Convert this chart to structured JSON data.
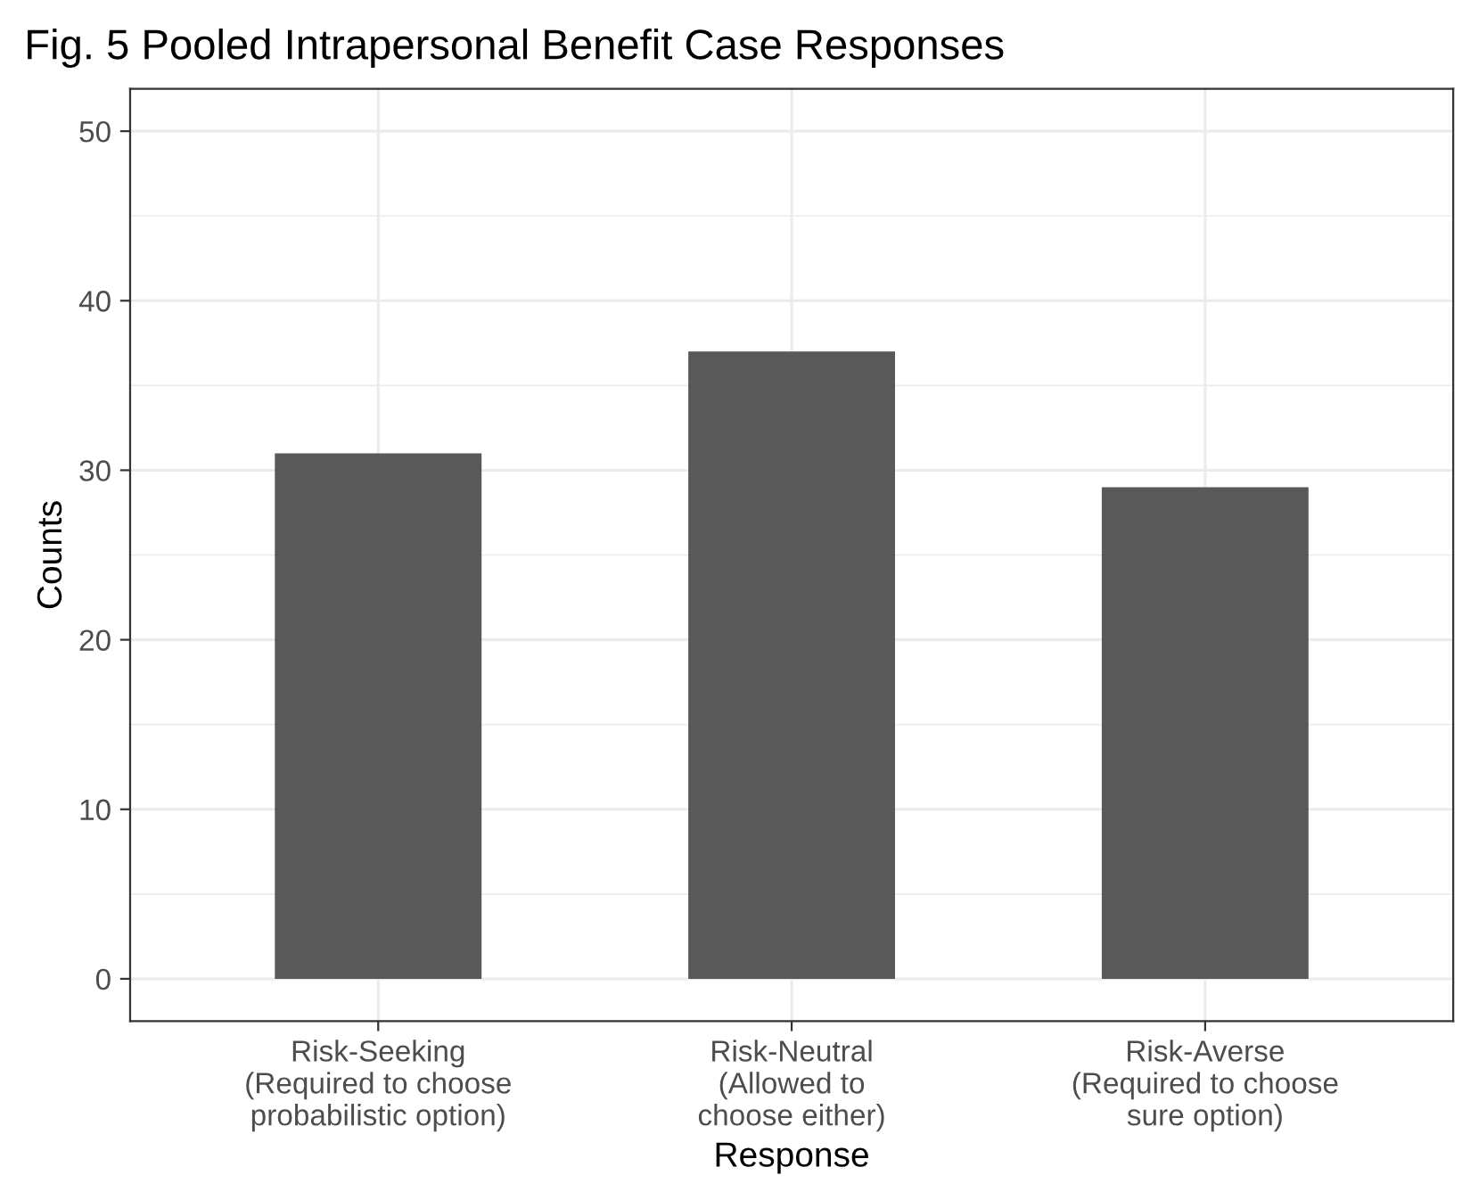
{
  "chart_data": {
    "type": "bar",
    "title": "Fig. 5 Pooled Intrapersonal Benefit Case Responses",
    "xlabel": "Response",
    "ylabel": "Counts",
    "categories": [
      "Risk-Seeking\n(Required to choose\nprobabilistic option)",
      "Risk-Neutral\n(Allowed to\nchoose either)",
      "Risk-Averse\n(Required to choose\nsure option)"
    ],
    "values": [
      31,
      37,
      29
    ],
    "color": "#595959",
    "ylim": [
      -2.5,
      52.5
    ],
    "yticks": [
      0,
      10,
      20,
      30,
      40,
      50
    ],
    "grid": true
  }
}
